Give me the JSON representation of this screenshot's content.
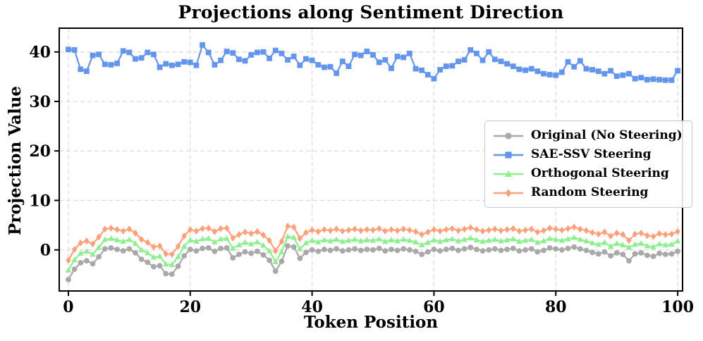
{
  "chart_data": {
    "type": "line",
    "title": "Projections along Sentiment Direction",
    "xlabel": "Token Position",
    "ylabel": "Projection Value",
    "x_ticks": [
      0,
      20,
      40,
      60,
      80,
      100
    ],
    "y_ticks": [
      0,
      10,
      20,
      30,
      40
    ],
    "xlim": [
      -1.5,
      100.8
    ],
    "ylim": [
      -8.3,
      44.8
    ],
    "grid": "dashed-both-axes",
    "grid_color": "#d9d9d9",
    "spine_color": "#000000",
    "background_color": "#ffffff",
    "legend_position": "center-right",
    "x_start": 0,
    "x_step": 1,
    "n_points": 101,
    "series": [
      {
        "key": "original",
        "name": "Original (No Steering)",
        "color": "#a9a9a9",
        "marker": "circle",
        "values": [
          -6.0,
          -3.9,
          -2.6,
          -2.2,
          -2.8,
          -1.4,
          0.2,
          0.4,
          0.1,
          -0.2,
          0.2,
          -0.6,
          -1.9,
          -2.5,
          -3.4,
          -3.2,
          -4.8,
          -4.9,
          -3.3,
          -1.2,
          0.1,
          -0.2,
          0.3,
          0.4,
          -0.3,
          0.3,
          0.4,
          -1.6,
          -0.9,
          -0.4,
          -0.7,
          -0.3,
          -1.0,
          -2.1,
          -4.3,
          -2.3,
          0.8,
          0.6,
          -1.7,
          -0.5,
          0.0,
          -0.3,
          0.1,
          -0.1,
          0.2,
          -0.2,
          0.0,
          0.2,
          -0.1,
          0.1,
          0.0,
          0.3,
          -0.2,
          0.1,
          -0.1,
          0.2,
          0.0,
          -0.3,
          -0.9,
          -0.4,
          0.1,
          -0.2,
          0.1,
          0.3,
          -0.1,
          0.2,
          0.5,
          0.1,
          -0.2,
          0.0,
          0.2,
          -0.1,
          0.1,
          0.3,
          -0.2,
          0.0,
          0.2,
          -0.4,
          -0.1,
          0.4,
          0.2,
          0.0,
          0.3,
          0.6,
          0.2,
          -0.1,
          -0.5,
          -0.8,
          -0.4,
          -1.2,
          -0.6,
          -0.9,
          -2.2,
          -0.8,
          -0.6,
          -1.1,
          -1.3,
          -0.7,
          -0.9,
          -0.8,
          -0.3
        ]
      },
      {
        "key": "sae-ssv",
        "name": "SAE-SSV Steering",
        "color": "#6495ed",
        "marker": "square",
        "values": [
          40.5,
          40.4,
          36.5,
          36.1,
          39.3,
          39.5,
          37.5,
          37.4,
          37.7,
          40.2,
          39.9,
          38.6,
          38.8,
          39.9,
          39.5,
          36.9,
          37.6,
          37.3,
          37.5,
          38.0,
          37.9,
          37.3,
          41.4,
          39.9,
          37.4,
          38.3,
          40.1,
          39.8,
          38.5,
          38.2,
          39.4,
          39.9,
          40.0,
          38.7,
          40.3,
          39.7,
          38.4,
          39.1,
          37.3,
          38.6,
          38.3,
          37.4,
          36.9,
          37.0,
          35.7,
          38.1,
          37.1,
          39.5,
          39.3,
          40.1,
          39.4,
          37.9,
          38.4,
          36.7,
          39.1,
          38.9,
          39.7,
          36.6,
          36.3,
          35.4,
          34.6,
          36.4,
          37.1,
          37.2,
          38.1,
          38.4,
          40.4,
          39.7,
          38.3,
          40.0,
          38.5,
          38.1,
          37.6,
          37.1,
          36.5,
          36.3,
          36.6,
          36.1,
          35.6,
          35.4,
          35.3,
          35.9,
          38.0,
          37.0,
          38.2,
          36.6,
          36.4,
          36.1,
          35.6,
          36.2,
          35.1,
          35.3,
          35.6,
          34.6,
          34.8,
          34.4,
          34.5,
          34.4,
          34.3,
          34.3,
          36.2
        ]
      },
      {
        "key": "orthogonal",
        "name": "Orthogonal Steering",
        "color": "#90ee90",
        "marker": "triangle",
        "values": [
          -4.1,
          -2.0,
          -0.7,
          -0.3,
          -0.9,
          0.5,
          2.1,
          2.3,
          2.0,
          1.7,
          2.1,
          1.3,
          0.0,
          -0.6,
          -1.5,
          -1.3,
          -2.9,
          -3.0,
          -1.4,
          0.7,
          2.0,
          1.7,
          2.2,
          2.3,
          1.6,
          2.2,
          2.3,
          0.3,
          1.0,
          1.5,
          1.2,
          1.6,
          0.9,
          -0.2,
          -2.4,
          -0.4,
          2.7,
          2.5,
          0.2,
          1.4,
          1.9,
          1.6,
          2.0,
          1.8,
          2.1,
          1.7,
          1.9,
          2.1,
          1.8,
          2.0,
          1.9,
          2.2,
          1.7,
          2.0,
          1.8,
          2.1,
          1.9,
          1.6,
          1.0,
          1.5,
          2.0,
          1.7,
          2.0,
          2.2,
          1.8,
          2.1,
          2.4,
          2.0,
          1.7,
          1.9,
          2.1,
          1.8,
          2.0,
          2.2,
          1.7,
          1.9,
          2.1,
          1.5,
          1.8,
          2.3,
          2.1,
          1.9,
          2.2,
          2.5,
          2.1,
          1.8,
          1.4,
          1.1,
          1.5,
          0.7,
          1.3,
          1.0,
          0.5,
          1.1,
          1.3,
          0.8,
          0.6,
          1.2,
          1.0,
          1.1,
          1.8
        ]
      },
      {
        "key": "random",
        "name": "Random Steering",
        "color": "#ffa07a",
        "marker": "diamond",
        "values": [
          -2.1,
          0.1,
          1.4,
          1.8,
          1.2,
          2.6,
          4.2,
          4.4,
          4.1,
          3.8,
          4.2,
          3.4,
          2.1,
          1.5,
          0.6,
          0.8,
          -0.8,
          -0.9,
          0.7,
          2.8,
          4.1,
          3.8,
          4.3,
          4.4,
          3.7,
          4.3,
          4.4,
          2.4,
          3.1,
          3.6,
          3.3,
          3.7,
          3.0,
          1.9,
          -0.2,
          1.7,
          4.8,
          4.6,
          2.3,
          3.5,
          4.0,
          3.7,
          4.1,
          3.9,
          4.2,
          3.8,
          4.0,
          4.2,
          3.9,
          4.1,
          4.0,
          4.3,
          3.8,
          4.1,
          3.9,
          4.2,
          4.0,
          3.7,
          3.1,
          3.6,
          4.1,
          3.8,
          4.1,
          4.3,
          3.9,
          4.2,
          4.5,
          4.1,
          3.8,
          4.0,
          4.2,
          3.9,
          4.1,
          4.3,
          3.8,
          4.0,
          4.2,
          3.6,
          3.9,
          4.4,
          4.2,
          4.0,
          4.3,
          4.6,
          4.2,
          3.9,
          3.5,
          3.2,
          3.6,
          2.8,
          3.4,
          3.1,
          1.9,
          3.2,
          3.4,
          2.9,
          2.7,
          3.3,
          3.1,
          3.2,
          3.7
        ]
      }
    ]
  }
}
